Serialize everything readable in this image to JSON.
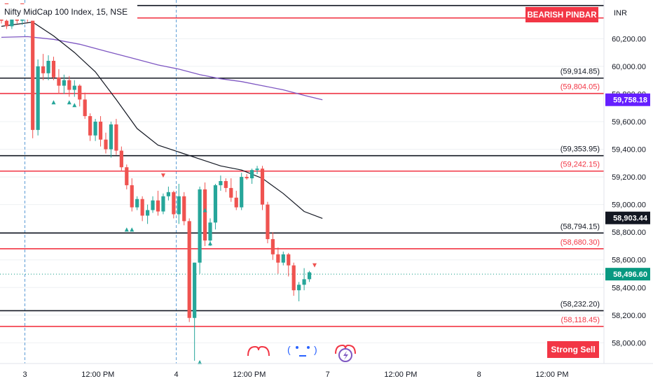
{
  "header": {
    "title": "Nifty MidCap 100 Index, 15, NSE"
  },
  "currency_label": "INR",
  "badges": {
    "top": "BEARISH PINBAR",
    "bottom": "Strong Sell"
  },
  "colors": {
    "up": "#26a69a",
    "down": "#ef5350",
    "black_line": "#131722",
    "red_line": "#f23645",
    "ma_black": "#131722",
    "ma_purple": "#7e57c2",
    "badge": "#f23645",
    "price_tag_purple": "#651fff",
    "price_tag_black": "#131722",
    "price_tag_green": "#089981",
    "grid": "#eef0f3",
    "session": "#5b9bd5"
  },
  "chart_data": {
    "type": "candlestick",
    "title": "Nifty MidCap 100 Index, 15, NSE",
    "y_range": [
      57850,
      60480
    ],
    "y_ticks": [
      "60,200.00",
      "60,000.00",
      "59,800.00",
      "59,600.00",
      "59,400.00",
      "59,200.00",
      "59,000.00",
      "58,800.00",
      "58,600.00",
      "58,400.00",
      "58,200.00",
      "58,000.00"
    ],
    "y_tick_values": [
      60200,
      60000,
      59800,
      59600,
      59400,
      59200,
      59000,
      58800,
      58600,
      58400,
      58200,
      58000
    ],
    "x_ticks": [
      {
        "label": "3",
        "bar": 4.5
      },
      {
        "label": "12:00 PM",
        "bar": 18.5
      },
      {
        "label": "4",
        "bar": 33.5
      },
      {
        "label": "12:00 PM",
        "bar": 47.5
      },
      {
        "label": "7",
        "bar": 62.5
      },
      {
        "label": "12:00 PM",
        "bar": 76.5
      },
      {
        "label": "8",
        "bar": 91.5
      },
      {
        "label": "12:00 PM",
        "bar": 105.5
      }
    ],
    "session_breaks": [
      4.5,
      33.5
    ],
    "levels": [
      {
        "value": 60440,
        "kind": "black",
        "label": ""
      },
      {
        "value": 60350,
        "kind": "red",
        "label": ""
      },
      {
        "value": 59914.85,
        "kind": "black",
        "label": "(59,914.85)"
      },
      {
        "value": 59804.05,
        "kind": "red",
        "label": "(59,804.05)"
      },
      {
        "value": 59353.95,
        "kind": "black",
        "label": "(59,353.95)"
      },
      {
        "value": 59242.15,
        "kind": "red",
        "label": "(59,242.15)"
      },
      {
        "value": 58794.15,
        "kind": "black",
        "label": "(58,794.15)"
      },
      {
        "value": 58680.3,
        "kind": "red",
        "label": "(58,680.30)"
      },
      {
        "value": 58232.2,
        "kind": "black",
        "label": "(58,232.20)"
      },
      {
        "value": 58118.45,
        "kind": "red",
        "label": "(58,118.45)"
      }
    ],
    "price_tags": [
      {
        "value": 59758.18,
        "label": "59,758.18",
        "kind": "purple"
      },
      {
        "value": 58903.44,
        "label": "58,903.44",
        "kind": "black"
      },
      {
        "value": 58496.6,
        "label": "58,496.60",
        "kind": "green"
      }
    ],
    "current_price": 58496.6,
    "candles": [
      [
        60380,
        60400,
        60310,
        60330
      ],
      [
        60330,
        60360,
        60270,
        60290
      ],
      [
        60290,
        60370,
        60270,
        60350
      ],
      [
        60350,
        60410,
        60310,
        60330
      ],
      [
        60330,
        60380,
        60300,
        60360
      ],
      [
        60360,
        60400,
        60320,
        60350
      ],
      [
        60330,
        60330,
        59480,
        59540
      ],
      [
        59540,
        60050,
        59500,
        60000
      ],
      [
        60000,
        60090,
        59900,
        59950
      ],
      [
        59950,
        60080,
        59900,
        60040
      ],
      [
        60040,
        60070,
        59900,
        59920
      ],
      [
        59920,
        59980,
        59800,
        59860
      ],
      [
        59860,
        59940,
        59800,
        59900
      ],
      [
        59900,
        59930,
        59780,
        59830
      ],
      [
        59830,
        59900,
        59780,
        59860
      ],
      [
        59860,
        59870,
        59710,
        59760
      ],
      [
        59760,
        59810,
        59620,
        59640
      ],
      [
        59640,
        59660,
        59460,
        59500
      ],
      [
        59500,
        59620,
        59460,
        59600
      ],
      [
        59600,
        59640,
        59420,
        59470
      ],
      [
        59470,
        59520,
        59370,
        59400
      ],
      [
        59400,
        59600,
        59340,
        59580
      ],
      [
        59580,
        59620,
        59360,
        59390
      ],
      [
        59390,
        59420,
        59240,
        59270
      ],
      [
        59270,
        59290,
        59110,
        59140
      ],
      [
        59140,
        59190,
        58950,
        58980
      ],
      [
        58980,
        59060,
        58960,
        59040
      ],
      [
        59040,
        59060,
        58880,
        58920
      ],
      [
        58920,
        59000,
        58860,
        58960
      ],
      [
        58960,
        59060,
        58940,
        59030
      ],
      [
        59030,
        59100,
        58920,
        58950
      ],
      [
        58950,
        59080,
        58930,
        59060
      ],
      [
        59060,
        59130,
        59030,
        59090
      ],
      [
        59090,
        59100,
        58900,
        58930
      ],
      [
        58930,
        59150,
        58860,
        59060
      ],
      [
        59060,
        59090,
        58850,
        58880
      ],
      [
        58880,
        58900,
        58150,
        58180
      ],
      [
        58180,
        58580,
        57870,
        58580
      ],
      [
        58580,
        59130,
        58500,
        59110
      ],
      [
        59110,
        59160,
        58700,
        58740
      ],
      [
        58740,
        58900,
        58700,
        58870
      ],
      [
        58870,
        59150,
        58820,
        59140
      ],
      [
        59140,
        59210,
        59100,
        59170
      ],
      [
        59170,
        59190,
        59090,
        59120
      ],
      [
        59120,
        59190,
        59020,
        59050
      ],
      [
        59050,
        59100,
        58960,
        58980
      ],
      [
        58980,
        59230,
        58960,
        59200
      ],
      [
        59200,
        59220,
        59180,
        59190
      ],
      [
        59190,
        59260,
        59150,
        59250
      ],
      [
        59250,
        59280,
        59220,
        59260
      ],
      [
        59260,
        59280,
        58960,
        59000
      ],
      [
        59000,
        59020,
        58720,
        58750
      ],
      [
        58750,
        58800,
        58600,
        58640
      ],
      [
        58640,
        58690,
        58500,
        58580
      ],
      [
        58580,
        58660,
        58560,
        58640
      ],
      [
        58640,
        58650,
        58480,
        58560
      ],
      [
        58560,
        58580,
        58340,
        58380
      ],
      [
        58380,
        58440,
        58300,
        58420
      ],
      [
        58420,
        58540,
        58380,
        58460
      ],
      [
        58460,
        58520,
        58440,
        58510
      ]
    ],
    "ma_black": [
      [
        0,
        60290
      ],
      [
        6,
        60320
      ],
      [
        10,
        60220
      ],
      [
        14,
        60100
      ],
      [
        18,
        59960
      ],
      [
        22,
        59760
      ],
      [
        26,
        59550
      ],
      [
        30,
        59430
      ],
      [
        34,
        59380
      ],
      [
        38,
        59330
      ],
      [
        42,
        59280
      ],
      [
        46,
        59250
      ],
      [
        50,
        59190
      ],
      [
        54,
        59080
      ],
      [
        58,
        58950
      ],
      [
        61.5,
        58900
      ]
    ],
    "ma_purple": [
      [
        0,
        60210
      ],
      [
        5,
        60215
      ],
      [
        10,
        60195
      ],
      [
        15,
        60160
      ],
      [
        20,
        60110
      ],
      [
        25,
        60060
      ],
      [
        30,
        60010
      ],
      [
        34,
        59980
      ],
      [
        38,
        59940
      ],
      [
        42,
        59910
      ],
      [
        46,
        59890
      ],
      [
        50,
        59860
      ],
      [
        54,
        59830
      ],
      [
        58,
        59790
      ],
      [
        61.5,
        59758.18
      ]
    ],
    "signals_up": [
      [
        10,
        59740
      ],
      [
        13,
        59740
      ],
      [
        14,
        59720
      ],
      [
        24,
        58820
      ],
      [
        25,
        58820
      ],
      [
        38,
        57860
      ],
      [
        39,
        58960
      ],
      [
        40,
        58720
      ]
    ],
    "signals_down": [
      [
        1,
        60440
      ],
      [
        4,
        60440
      ],
      [
        31,
        59210
      ],
      [
        60,
        58560
      ]
    ]
  }
}
